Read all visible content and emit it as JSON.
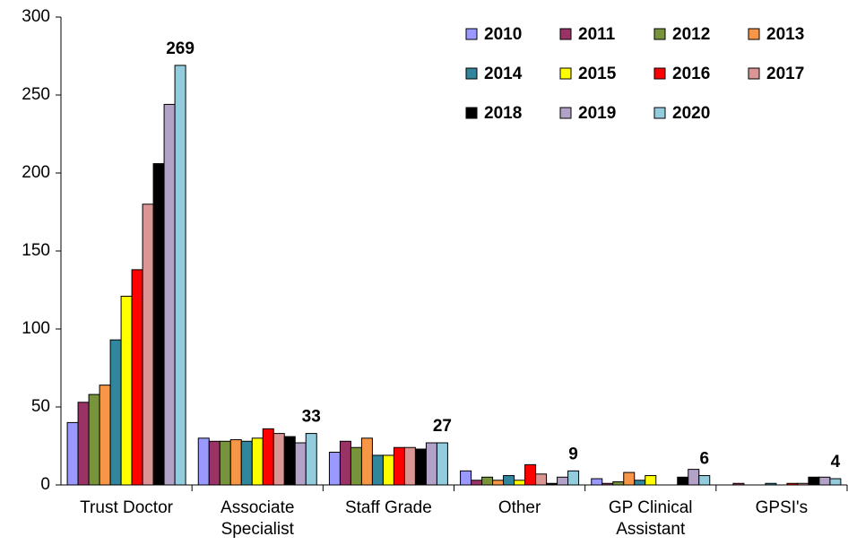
{
  "chart_data": {
    "type": "bar",
    "categories": [
      "Trust Doctor",
      "Associate Specialist",
      "Staff Grade",
      "Other",
      "GP Clinical Assistant",
      "GPSI's"
    ],
    "series": [
      {
        "name": "2010",
        "color": "#9999ff",
        "values": [
          40,
          30,
          21,
          9,
          4,
          0
        ]
      },
      {
        "name": "2011",
        "color": "#993366",
        "values": [
          53,
          28,
          28,
          3,
          1,
          1
        ]
      },
      {
        "name": "2012",
        "color": "#77933c",
        "values": [
          58,
          28,
          24,
          5,
          2,
          0
        ]
      },
      {
        "name": "2013",
        "color": "#f79646",
        "values": [
          64,
          29,
          30,
          3,
          8,
          0
        ]
      },
      {
        "name": "2014",
        "color": "#31859c",
        "values": [
          93,
          28,
          19,
          6,
          3,
          1
        ]
      },
      {
        "name": "2015",
        "color": "#ffff00",
        "values": [
          121,
          30,
          19,
          3,
          6,
          0
        ]
      },
      {
        "name": "2016",
        "color": "#ff0000",
        "values": [
          138,
          36,
          24,
          13,
          0,
          1
        ]
      },
      {
        "name": "2017",
        "color": "#d99694",
        "values": [
          180,
          33,
          24,
          7,
          0,
          1
        ]
      },
      {
        "name": "2018",
        "color": "#000000",
        "values": [
          206,
          31,
          23,
          1,
          5,
          5
        ]
      },
      {
        "name": "2019",
        "color": "#b3a2c7",
        "values": [
          244,
          27,
          27,
          5,
          10,
          5
        ]
      },
      {
        "name": "2020",
        "color": "#93cddd",
        "values": [
          269,
          33,
          27,
          9,
          6,
          4
        ]
      }
    ],
    "ylim": [
      0,
      300
    ],
    "yticks": [
      0,
      50,
      100,
      150,
      200,
      250,
      300
    ],
    "legend": "upper right",
    "labeled_series": 10
  }
}
